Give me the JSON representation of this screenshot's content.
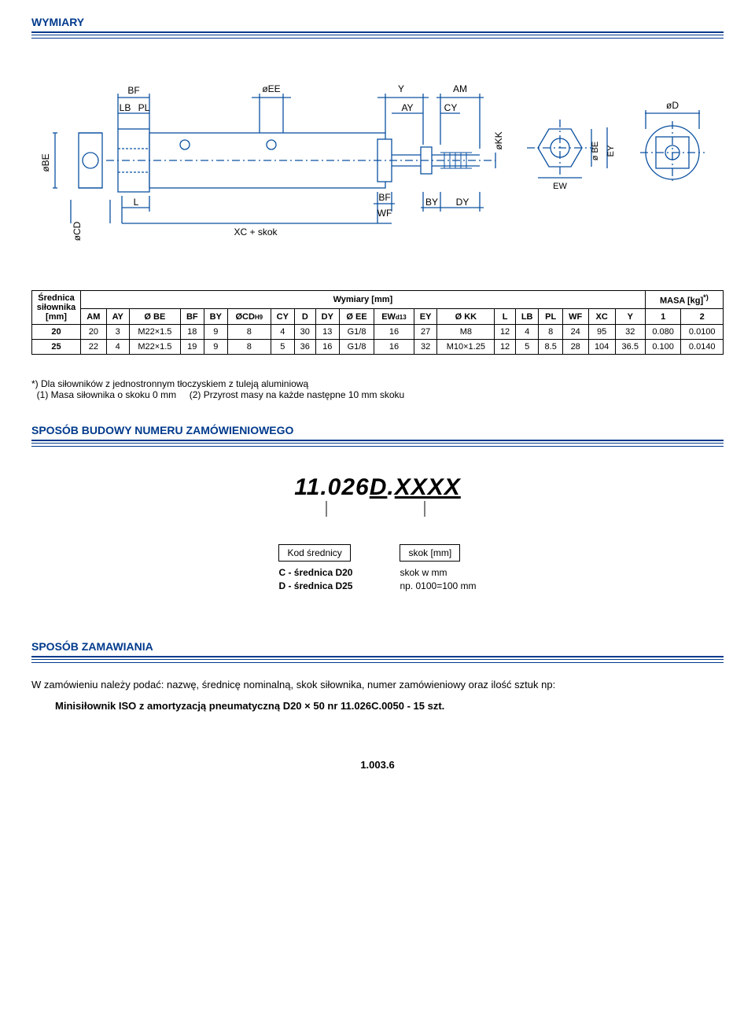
{
  "section_titles": {
    "wymiary": "WYMIARY",
    "sposob_budowy": "SPOSÓB BUDOWY NUMERU ZAMÓWIENIOWEGO",
    "sposob_zamawiania": "SPOSÓB ZAMAWIANIA"
  },
  "diagram": {
    "labels": {
      "BF": "BF",
      "LB": "LB",
      "PL": "PL",
      "oEE": "øEE",
      "Y": "Y",
      "AY": "AY",
      "AM": "AM",
      "CY": "CY",
      "oKK": "øKK",
      "oD": "øD",
      "oBE": "øBE",
      "oCD": "øCD",
      "L": "L",
      "BF2": "BF",
      "WF": "WF",
      "XCskok": "XC + skok",
      "BY": "BY",
      "DY": "DY",
      "oBE2": "ø BE",
      "EY": "EY",
      "EW": "EW"
    },
    "colors": {
      "line": "#0a50a0",
      "fill": "#ffffff",
      "hatch": "#0a50a0"
    }
  },
  "table": {
    "header_group1": "Średnica\nsiłownika\n[mm]",
    "header_group2": "Wymiary [mm]",
    "header_group3": "MASA [kg]",
    "header_group3_sup": "*)",
    "columns": [
      "AM",
      "AY",
      "Ø BE",
      "BF",
      "BY",
      "ØCD",
      "CY",
      "D",
      "DY",
      "Ø EE",
      "EW",
      "EY",
      "Ø KK",
      "L",
      "LB",
      "PL",
      "WF",
      "XC",
      "Y",
      "1",
      "2"
    ],
    "col_sub": {
      "5": "H9",
      "10": "d13"
    },
    "rows": [
      {
        "d": "20",
        "cells": [
          "20",
          "3",
          "M22×1.5",
          "18",
          "9",
          "8",
          "4",
          "30",
          "13",
          "G1/8",
          "16",
          "27",
          "M8",
          "12",
          "4",
          "8",
          "24",
          "95",
          "32",
          "0.080",
          "0.0100"
        ]
      },
      {
        "d": "25",
        "cells": [
          "22",
          "4",
          "M22×1.5",
          "19",
          "9",
          "8",
          "5",
          "36",
          "16",
          "G1/8",
          "16",
          "32",
          "M10×1.25",
          "12",
          "5",
          "8.5",
          "28",
          "104",
          "36.5",
          "0.100",
          "0.0140"
        ]
      }
    ]
  },
  "footnote": {
    "star": "*) ",
    "line1": "Dla siłowników z jednostronnym tłoczyskiem z tuleją aluminiową",
    "line2a": "(1) Masa siłownika o skoku 0 mm",
    "line2b": "(2) Przyrost masy na każde następne 10 mm skoku"
  },
  "order_code": {
    "prefix": "11.026",
    "var1": "D",
    "dot": ".",
    "var2": "XXXX",
    "legend_left_title": "Kod średnicy",
    "legend_left_lines": [
      "C - średnica D20",
      "D - średnica D25"
    ],
    "legend_right_title": "skok [mm]",
    "legend_right_lines": [
      "skok w mm",
      "np. 0100=100 mm"
    ]
  },
  "ordering": {
    "text": "W zamówieniu należy podać: nazwę, średnicę nominalną, skok siłownika, numer zamówieniowy oraz ilość sztuk np:",
    "example": "Minisiłownik ISO z amortyzacją pneumatyczną D20 × 50  nr 11.026C.0050  -  15 szt."
  },
  "page_number": "1.003.6",
  "colors": {
    "heading": "#003a8c",
    "diagram_line": "#0a50a0"
  }
}
